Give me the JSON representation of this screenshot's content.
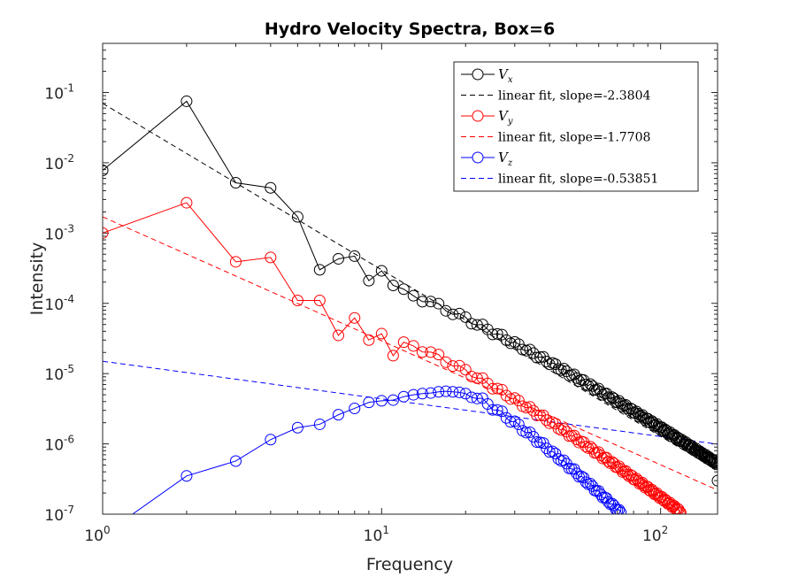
{
  "chart_data": {
    "type": "line",
    "title": "Hydro Velocity Spectra, Box=6",
    "xlabel": "Frequency",
    "ylabel": "Intensity",
    "xscale": "log",
    "yscale": "log",
    "xlim": [
      1,
      160
    ],
    "ylim": [
      1e-07,
      0.5
    ],
    "xticks": [
      {
        "base": "10",
        "exp": "0",
        "value": 1
      },
      {
        "base": "10",
        "exp": "1",
        "value": 10
      },
      {
        "base": "10",
        "exp": "2",
        "value": 100
      }
    ],
    "yticks": [
      {
        "base": "10",
        "exp": "-7",
        "value": 1e-07
      },
      {
        "base": "10",
        "exp": "-6",
        "value": 1e-06
      },
      {
        "base": "10",
        "exp": "-5",
        "value": 1e-05
      },
      {
        "base": "10",
        "exp": "-4",
        "value": 0.0001
      },
      {
        "base": "10",
        "exp": "-3",
        "value": 0.001
      },
      {
        "base": "10",
        "exp": "-2",
        "value": 0.01
      },
      {
        "base": "10",
        "exp": "-1",
        "value": 0.1
      }
    ],
    "legend_position": "top-right",
    "series": [
      {
        "name": "V",
        "sub": "x",
        "color": "#000000",
        "marker": "circle",
        "head": [
          [
            1,
            0.0078
          ],
          [
            2,
            0.075
          ],
          [
            3,
            0.0052
          ],
          [
            4,
            0.0044
          ],
          [
            5,
            0.0017
          ],
          [
            6,
            0.0003
          ],
          [
            7,
            0.00043
          ],
          [
            8,
            0.00047
          ],
          [
            9,
            0.00021
          ],
          [
            10,
            0.00029
          ],
          [
            11,
            0.00018
          ]
        ],
        "tail_from": [
          12,
          0.000145
        ],
        "tail_to": [
          160,
          5.2e-07
        ],
        "tail_alpha": 2.38,
        "tail_end_point": [
          160,
          3e-07
        ]
      },
      {
        "name": "V",
        "sub": "y",
        "color": "#ff0000",
        "marker": "circle",
        "head": [
          [
            1,
            0.001
          ],
          [
            2,
            0.0027
          ],
          [
            3,
            0.00039
          ],
          [
            4,
            0.00045
          ],
          [
            5,
            0.00011
          ],
          [
            6,
            0.00011
          ],
          [
            7,
            3.5e-05
          ],
          [
            8,
            6.2e-05
          ],
          [
            9,
            3e-05
          ],
          [
            10,
            3.7e-05
          ],
          [
            11,
            1.8e-05
          ],
          [
            12,
            2.8e-05
          ]
        ],
        "tail_from": [
          13,
          2.5e-05
        ],
        "tail_to": [
          118,
          1.08e-07
        ],
        "tail_alpha": 2.45
      },
      {
        "name": "V",
        "sub": "z",
        "color": "#0000ff",
        "marker": "circle",
        "head": [
          [
            1,
            5e-08
          ],
          [
            2,
            3.5e-07
          ],
          [
            3,
            5.7e-07
          ],
          [
            4,
            1.15e-06
          ],
          [
            5,
            1.7e-06
          ],
          [
            6,
            1.9e-06
          ],
          [
            7,
            2.6e-06
          ],
          [
            8,
            3.2e-06
          ],
          [
            9,
            3.9e-06
          ],
          [
            10,
            4.1e-06
          ],
          [
            11,
            4.2e-06
          ],
          [
            12,
            4.7e-06
          ],
          [
            13,
            5e-06
          ],
          [
            14,
            5.2e-06
          ],
          [
            15,
            5.3e-06
          ],
          [
            16,
            5.5e-06
          ],
          [
            17,
            5.6e-06
          ],
          [
            18,
            5.5e-06
          ],
          [
            19,
            5.4e-06
          ],
          [
            20,
            5.2e-06
          ]
        ],
        "tail_from": [
          21,
          5e-06
        ],
        "tail_to": [
          72,
          1.05e-07
        ],
        "tail_alpha": 3.1
      }
    ],
    "fits": [
      {
        "label": "linear fit, slope=-2.3804",
        "color": "#000000",
        "x": [
          1,
          160
        ],
        "y": [
          0.07,
          4.2e-07
        ]
      },
      {
        "label": "linear fit, slope=-1.7708",
        "color": "#ff0000",
        "x": [
          1,
          160
        ],
        "y": [
          0.0017,
          2.2e-07
        ]
      },
      {
        "label": "linear fit, slope=-0.53851",
        "color": "#0000ff",
        "x": [
          1,
          160
        ],
        "y": [
          1.5e-05,
          9.9e-07
        ]
      }
    ]
  }
}
